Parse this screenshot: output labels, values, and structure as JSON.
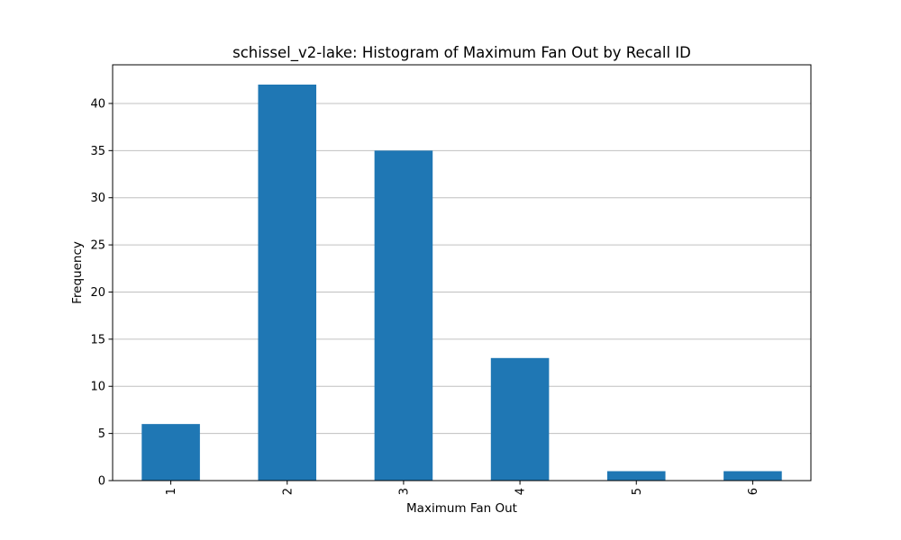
{
  "chart_data": {
    "type": "bar",
    "title": "schissel_v2-lake: Histogram of Maximum Fan Out by Recall ID",
    "xlabel": "Maximum Fan Out",
    "ylabel": "Frequency",
    "categories": [
      "1",
      "2",
      "3",
      "4",
      "5",
      "6"
    ],
    "values": [
      6,
      42,
      35,
      13,
      1,
      1
    ],
    "ylim": [
      0,
      44.1
    ],
    "yticks": [
      0,
      5,
      10,
      15,
      20,
      25,
      30,
      35,
      40
    ],
    "ytick_labels": [
      "0",
      "5",
      "10",
      "15",
      "20",
      "25",
      "30",
      "35",
      "40"
    ],
    "grid": "y-axis horizontal gridlines",
    "legend": "none",
    "xtick_rotation": "vertical",
    "bar_color": "#1f77b4",
    "grid_color": "#c0c0c0",
    "axis_color": "#000000"
  }
}
